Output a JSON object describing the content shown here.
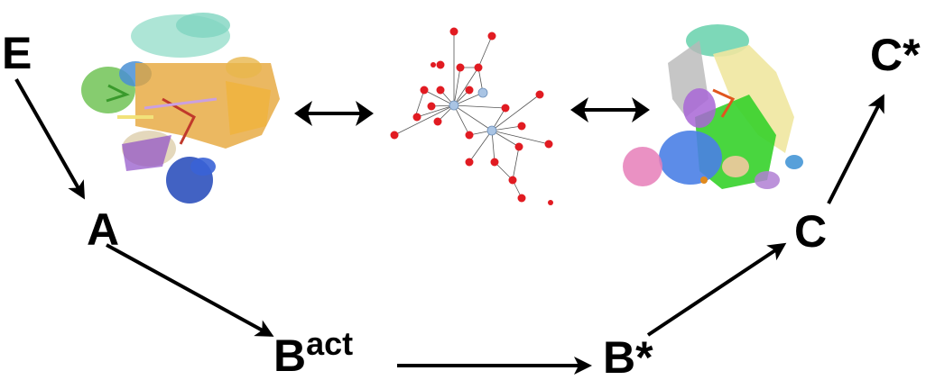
{
  "diagram": {
    "states": {
      "E": "E",
      "A": "A",
      "B_base": "B",
      "B_sup": "act",
      "Bstar": "B*",
      "C": "C",
      "Cstar": "C*"
    },
    "panels": {
      "left": "ribbon-structure-model",
      "middle": "interaction-network",
      "right": "cryo-em-density-map"
    },
    "colors": {
      "arrow": "#000000",
      "network_node": "#e11b22",
      "network_hub": "#a9c4e4",
      "network_edge": "#555555"
    }
  }
}
